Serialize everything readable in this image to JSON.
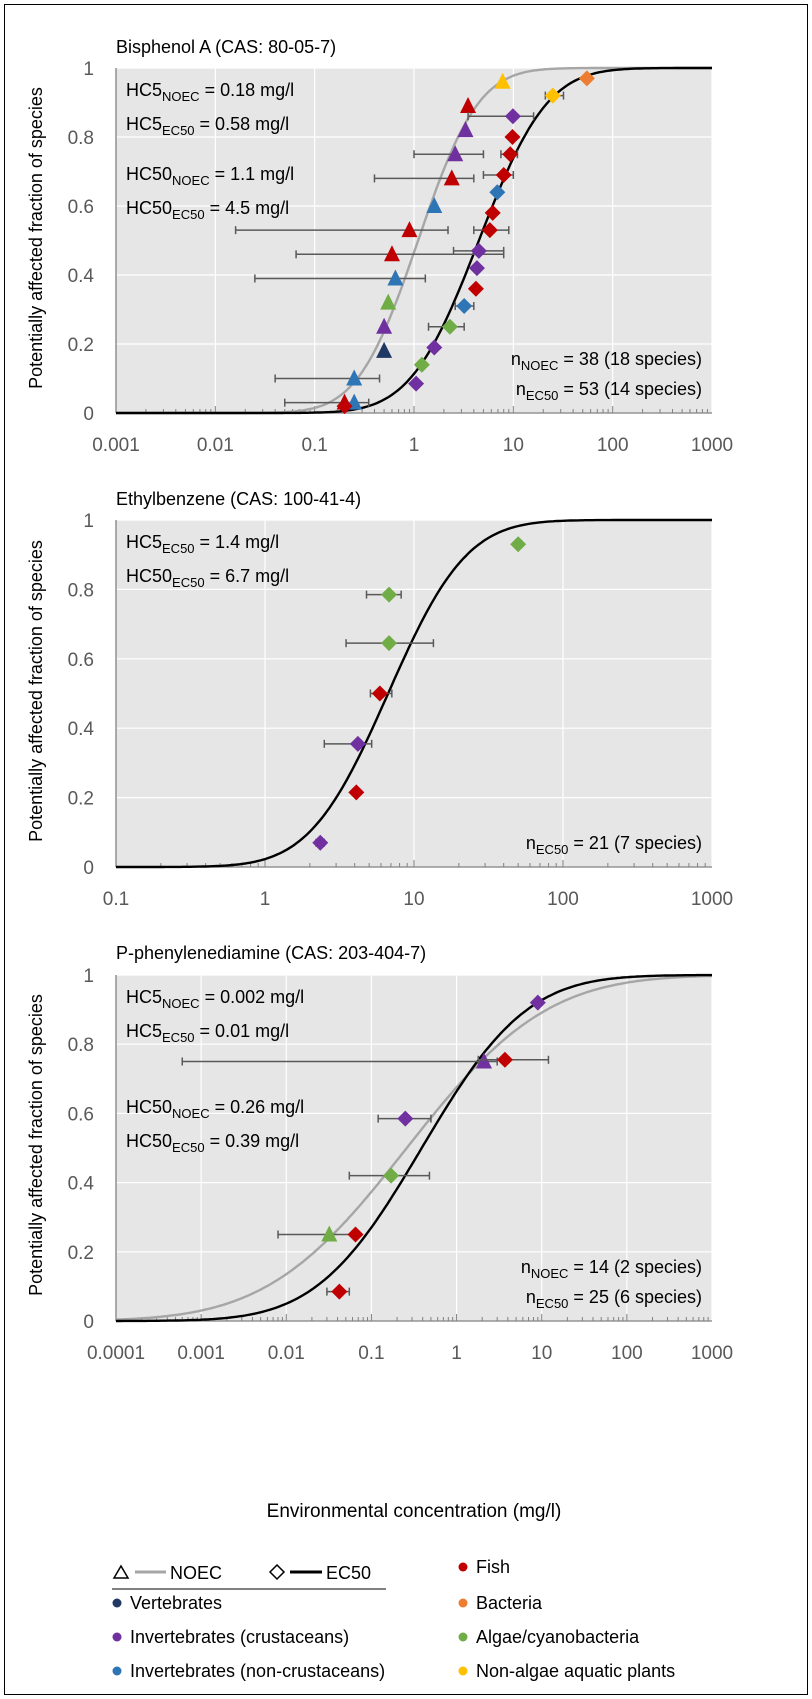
{
  "xlabel": "Environmental concentration (mg/l)",
  "ylabel": "Potentially affected fraction of species",
  "colors": {
    "Fish": "#c00000",
    "Vertebrates": "#1f3864",
    "Bacteria": "#ed7d31",
    "Invertebrates (crustaceans)": "#7030a0",
    "Algae/cyanobacteria": "#70ad47",
    "Invertebrates (non-crustaceans)": "#2e75b6",
    "Non-algae aquatic plants": "#ffc000",
    "NOEC": "#a6a6a6",
    "EC50": "#000000",
    "plot_bg": "#e6e6e6"
  },
  "legend": {
    "noec_label": "NOEC",
    "ec50_label": "EC50",
    "groups": [
      "Fish",
      "Vertebrates",
      "Bacteria",
      "Invertebrates (crustaceans)",
      "Algae/cyanobacteria",
      "Invertebrates (non-crustaceans)",
      "Non-algae aquatic plants"
    ]
  },
  "chart_data": [
    {
      "type": "scatter",
      "title": "Bisphenol A (CAS: 80-05-7)",
      "xscale": "log",
      "xlim": [
        0.001,
        1000
      ],
      "ylim": [
        0,
        1
      ],
      "xticks": [
        "0.001",
        "0.01",
        "0.1",
        "1",
        "10",
        "100",
        "1000"
      ],
      "yticks": [
        "0",
        "0.2",
        "0.4",
        "0.6",
        "0.8",
        "1"
      ],
      "annotations": [
        {
          "base": "HC5",
          "sub": "NOEC",
          "rest": " = 0.18 mg/l"
        },
        {
          "base": "HC5",
          "sub": "EC50",
          "rest": "  = 0.58 mg/l"
        },
        {
          "base": "HC50",
          "sub": "NOEC",
          "rest": " = 1.1 mg/l"
        },
        {
          "base": "HC50",
          "sub": "EC50",
          "rest": " = 4.5 mg/l"
        }
      ],
      "counts": [
        {
          "base": "n",
          "sub": "NOEC",
          "rest": " = 38 (18 species)"
        },
        {
          "base": "n",
          "sub": "EC50",
          "rest": " = 53 (14 species)"
        }
      ],
      "curves": [
        {
          "name": "NOEC",
          "median": 1.1,
          "hc5": 0.18
        },
        {
          "name": "EC50",
          "median": 4.5,
          "hc5": 0.58
        }
      ],
      "series": [
        {
          "name": "NOEC",
          "marker": "triangle",
          "points": [
            {
              "x": 0.2,
              "y": 0.03,
              "group": "Fish"
            },
            {
              "x": 0.25,
              "y": 0.03,
              "group": "Invertebrates (non-crustaceans)",
              "lo": 0.05,
              "hi": 0.35
            },
            {
              "x": 0.25,
              "y": 0.1,
              "group": "Invertebrates (non-crustaceans)",
              "lo": 0.04,
              "hi": 0.45
            },
            {
              "x": 0.5,
              "y": 0.18,
              "group": "Vertebrates"
            },
            {
              "x": 0.5,
              "y": 0.25,
              "group": "Invertebrates (crustaceans)"
            },
            {
              "x": 0.55,
              "y": 0.32,
              "group": "Algae/cyanobacteria"
            },
            {
              "x": 0.65,
              "y": 0.39,
              "group": "Invertebrates (non-crustaceans)",
              "lo": 0.025,
              "hi": 1.3
            },
            {
              "x": 0.6,
              "y": 0.46,
              "group": "Fish",
              "lo": 0.065,
              "hi": 8
            },
            {
              "x": 0.9,
              "y": 0.53,
              "group": "Fish",
              "lo": 0.016,
              "hi": 2.2
            },
            {
              "x": 1.6,
              "y": 0.6,
              "group": "Invertebrates (non-crustaceans)"
            },
            {
              "x": 2.4,
              "y": 0.68,
              "group": "Fish",
              "lo": 0.4,
              "hi": 4
            },
            {
              "x": 2.6,
              "y": 0.75,
              "group": "Invertebrates (crustaceans)",
              "lo": 1,
              "hi": 5
            },
            {
              "x": 3.3,
              "y": 0.82,
              "group": "Invertebrates (crustaceans)"
            },
            {
              "x": 3.5,
              "y": 0.89,
              "group": "Fish"
            },
            {
              "x": 7.8,
              "y": 0.96,
              "group": "Non-algae aquatic plants"
            }
          ]
        },
        {
          "name": "EC50",
          "marker": "diamond",
          "points": [
            {
              "x": 0.2,
              "y": 0.02,
              "group": "Fish"
            },
            {
              "x": 1.05,
              "y": 0.085,
              "group": "Invertebrates (crustaceans)"
            },
            {
              "x": 1.2,
              "y": 0.14,
              "group": "Algae/cyanobacteria"
            },
            {
              "x": 1.6,
              "y": 0.19,
              "group": "Invertebrates (crustaceans)"
            },
            {
              "x": 2.3,
              "y": 0.25,
              "group": "Algae/cyanobacteria",
              "lo": 1.4,
              "hi": 3.2
            },
            {
              "x": 3.2,
              "y": 0.31,
              "group": "Invertebrates (non-crustaceans)",
              "lo": 2.6,
              "hi": 4
            },
            {
              "x": 4.2,
              "y": 0.36,
              "group": "Fish"
            },
            {
              "x": 4.3,
              "y": 0.42,
              "group": "Invertebrates (crustaceans)"
            },
            {
              "x": 4.5,
              "y": 0.47,
              "group": "Invertebrates (crustaceans)",
              "lo": 2.5,
              "hi": 8
            },
            {
              "x": 5.8,
              "y": 0.53,
              "group": "Fish",
              "lo": 4,
              "hi": 9
            },
            {
              "x": 6.2,
              "y": 0.58,
              "group": "Fish"
            },
            {
              "x": 6.9,
              "y": 0.64,
              "group": "Invertebrates (non-crustaceans)"
            },
            {
              "x": 8,
              "y": 0.69,
              "group": "Fish",
              "lo": 5,
              "hi": 10
            },
            {
              "x": 9.3,
              "y": 0.75,
              "group": "Fish",
              "lo": 7.5,
              "hi": 11
            },
            {
              "x": 9.8,
              "y": 0.8,
              "group": "Fish"
            },
            {
              "x": 9.9,
              "y": 0.86,
              "group": "Invertebrates (crustaceans)",
              "lo": 3.5,
              "hi": 16
            },
            {
              "x": 25,
              "y": 0.92,
              "group": "Non-algae aquatic plants",
              "lo": 21,
              "hi": 32
            },
            {
              "x": 55,
              "y": 0.97,
              "group": "Bacteria"
            }
          ]
        }
      ]
    },
    {
      "type": "scatter",
      "title": "Ethylbenzene (CAS: 100-41-4)",
      "xscale": "log",
      "xlim": [
        0.1,
        1000
      ],
      "ylim": [
        0,
        1
      ],
      "xticks": [
        "0.1",
        "1",
        "10",
        "100",
        "1000"
      ],
      "yticks": [
        "0",
        "0.2",
        "0.4",
        "0.6",
        "0.8",
        "1"
      ],
      "annotations": [
        {
          "base": "HC5",
          "sub": "EC50",
          "rest": " = 1.4 mg/l"
        },
        {
          "base": "HC50",
          "sub": "EC50",
          "rest": " = 6.7 mg/l"
        }
      ],
      "counts": [
        {
          "base": "n",
          "sub": "EC50",
          "rest": "  = 21 (7 species)"
        }
      ],
      "curves": [
        {
          "name": "EC50",
          "median": 6.7,
          "hc5": 1.4
        }
      ],
      "series": [
        {
          "name": "EC50",
          "marker": "diamond",
          "points": [
            {
              "x": 2.35,
              "y": 0.07,
              "group": "Invertebrates (crustaceans)",
              "lo": 2.2,
              "hi": 2.5
            },
            {
              "x": 4.1,
              "y": 0.215,
              "group": "Fish"
            },
            {
              "x": 4.2,
              "y": 0.355,
              "group": "Invertebrates (crustaceans)",
              "lo": 2.5,
              "hi": 5.2
            },
            {
              "x": 5.9,
              "y": 0.5,
              "group": "Fish",
              "lo": 5.1,
              "hi": 7.1
            },
            {
              "x": 6.8,
              "y": 0.645,
              "group": "Algae/cyanobacteria",
              "lo": 3.5,
              "hi": 13.5
            },
            {
              "x": 6.8,
              "y": 0.785,
              "group": "Algae/cyanobacteria",
              "lo": 4.8,
              "hi": 8.2
            },
            {
              "x": 50,
              "y": 0.93,
              "group": "Algae/cyanobacteria"
            }
          ]
        }
      ]
    },
    {
      "type": "scatter",
      "title": "P-phenylenediamine (CAS: 203-404-7)",
      "xscale": "log",
      "xlim": [
        0.0001,
        1000
      ],
      "ylim": [
        0,
        1
      ],
      "xticks": [
        "0.0001",
        "0.001",
        "0.01",
        "0.1",
        "1",
        "10",
        "100",
        "1000"
      ],
      "yticks": [
        "0",
        "0.2",
        "0.4",
        "0.6",
        "0.8",
        "1"
      ],
      "annotations": [
        {
          "base": "HC5",
          "sub": "NOEC",
          "rest": " = 0.002 mg/l"
        },
        {
          "base": "HC5",
          "sub": "EC50",
          "rest": " = 0.01 mg/l"
        },
        {
          "base": "HC50",
          "sub": "NOEC",
          "rest": " = 0.26 mg/l"
        },
        {
          "base": "HC50",
          "sub": "EC50",
          "rest": " = 0.39 mg/l"
        }
      ],
      "counts": [
        {
          "base": "n",
          "sub": "NOEC",
          "rest": " = 14 (2 species)"
        },
        {
          "base": "n",
          "sub": "EC50",
          "rest": "  = 25 (6 species)"
        }
      ],
      "curves": [
        {
          "name": "NOEC",
          "median": 0.26,
          "hc5": 0.002
        },
        {
          "name": "EC50",
          "median": 0.39,
          "hc5": 0.01
        }
      ],
      "series": [
        {
          "name": "NOEC",
          "marker": "triangle",
          "points": [
            {
              "x": 0.032,
              "y": 0.25,
              "group": "Algae/cyanobacteria",
              "lo": 0.008,
              "hi": 0.065
            },
            {
              "x": 2.1,
              "y": 0.75,
              "group": "Invertebrates (crustaceans)",
              "lo": 0.0006,
              "hi": 3
            }
          ]
        },
        {
          "name": "EC50",
          "marker": "diamond",
          "points": [
            {
              "x": 0.042,
              "y": 0.085,
              "group": "Fish",
              "lo": 0.03,
              "hi": 0.055
            },
            {
              "x": 0.065,
              "y": 0.25,
              "group": "Fish"
            },
            {
              "x": 0.17,
              "y": 0.42,
              "group": "Algae/cyanobacteria",
              "lo": 0.055,
              "hi": 0.48
            },
            {
              "x": 0.25,
              "y": 0.585,
              "group": "Invertebrates (crustaceans)",
              "lo": 0.12,
              "hi": 0.5
            },
            {
              "x": 3.7,
              "y": 0.755,
              "group": "Fish",
              "lo": 1.8,
              "hi": 12
            },
            {
              "x": 9,
              "y": 0.92,
              "group": "Invertebrates (crustaceans)"
            }
          ]
        }
      ]
    }
  ]
}
